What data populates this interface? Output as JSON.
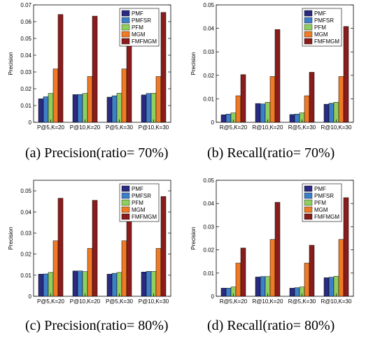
{
  "legend_colors": {
    "PMF": "#2a2a80",
    "PMFSR": "#3d7fc9",
    "PFM": "#8fcf5f",
    "MGM": "#f07a25",
    "FMFMGM": "#8a1c1c"
  },
  "chart_data": [
    {
      "type": "bar",
      "caption": "(a) Precision(ratio= 70%)",
      "ylabel": "Precision",
      "ylim": [
        0,
        0.07
      ],
      "yticks": [
        0,
        0.01,
        0.02,
        0.03,
        0.04,
        0.05,
        0.06,
        0.07
      ],
      "yticklabels": [
        "0",
        "0.01",
        "0.02",
        "0.03",
        "0.04",
        "0.05",
        "0.06",
        "0.07"
      ],
      "categories": [
        "P@5,K=20",
        "P@10,K=20",
        "P@5,K=30",
        "P@10,K=30"
      ],
      "legend_position": "top-right",
      "series": [
        {
          "name": "PMF",
          "values": [
            0.014,
            0.0165,
            0.015,
            0.0163
          ]
        },
        {
          "name": "PMFSR",
          "values": [
            0.0152,
            0.0166,
            0.0158,
            0.0172
          ]
        },
        {
          "name": "PFM",
          "values": [
            0.0172,
            0.0172,
            0.0173,
            0.0173
          ]
        },
        {
          "name": "MGM",
          "values": [
            0.0318,
            0.0273,
            0.0318,
            0.0273
          ]
        },
        {
          "name": "FMFMGM",
          "values": [
            0.0643,
            0.0633,
            0.0673,
            0.0655
          ]
        }
      ]
    },
    {
      "type": "bar",
      "caption": "(b) Recall(ratio= 70%)",
      "ylabel": "Precision",
      "ylim": [
        0,
        0.05
      ],
      "yticks": [
        0,
        0.01,
        0.02,
        0.03,
        0.04,
        0.05
      ],
      "yticklabels": [
        "0",
        "0.01",
        "0.02",
        "0.03",
        "0.04",
        "0.05"
      ],
      "categories": [
        "R@5,K=20",
        "R@10,K=20",
        "R@5,K=30",
        "R@10,K=30"
      ],
      "legend_position": "top-right",
      "series": [
        {
          "name": "PMF",
          "values": [
            0.0032,
            0.008,
            0.0033,
            0.0077
          ]
        },
        {
          "name": "PMFSR",
          "values": [
            0.0035,
            0.0078,
            0.0035,
            0.0081
          ]
        },
        {
          "name": "PFM",
          "values": [
            0.004,
            0.0085,
            0.004,
            0.0085
          ]
        },
        {
          "name": "MGM",
          "values": [
            0.0113,
            0.0195,
            0.0113,
            0.0195
          ]
        },
        {
          "name": "FMFMGM",
          "values": [
            0.0203,
            0.0395,
            0.0213,
            0.0408
          ]
        }
      ]
    },
    {
      "type": "bar",
      "caption": "(c) Precision(ratio= 80%)",
      "ylabel": "Precision",
      "ylim": [
        0,
        0.055
      ],
      "yticks": [
        0,
        0.01,
        0.02,
        0.03,
        0.04,
        0.05
      ],
      "yticklabels": [
        "0",
        "0.01",
        "0.02",
        "0.03",
        "0.04",
        "0.05"
      ],
      "categories": [
        "P@5,K=20",
        "P@10,K=20",
        "P@5,K=30",
        "P@10,K=30"
      ],
      "legend_position": "top-right",
      "series": [
        {
          "name": "PMF",
          "values": [
            0.0105,
            0.012,
            0.0105,
            0.0115
          ]
        },
        {
          "name": "PMFSR",
          "values": [
            0.0106,
            0.012,
            0.0109,
            0.0118
          ]
        },
        {
          "name": "PFM",
          "values": [
            0.0113,
            0.0117,
            0.0113,
            0.0118
          ]
        },
        {
          "name": "MGM",
          "values": [
            0.0263,
            0.0227,
            0.0263,
            0.0227
          ]
        },
        {
          "name": "FMFMGM",
          "values": [
            0.0465,
            0.0455,
            0.0488,
            0.0473
          ]
        }
      ]
    },
    {
      "type": "bar",
      "caption": "(d) Recall(ratio= 80%)",
      "ylabel": "Precision",
      "ylim": [
        0,
        0.05
      ],
      "yticks": [
        0,
        0.01,
        0.02,
        0.03,
        0.04,
        0.05
      ],
      "yticklabels": [
        "0",
        "0.01",
        "0.02",
        "0.03",
        "0.04",
        "0.05"
      ],
      "categories": [
        "R@5,K=20",
        "R@10,K=20",
        "R@5,K=30",
        "R@10,K=30"
      ],
      "legend_position": "top-right",
      "series": [
        {
          "name": "PMF",
          "values": [
            0.0035,
            0.0083,
            0.0035,
            0.008
          ]
        },
        {
          "name": "PMFSR",
          "values": [
            0.0035,
            0.0085,
            0.0037,
            0.0082
          ]
        },
        {
          "name": "PFM",
          "values": [
            0.004,
            0.0085,
            0.004,
            0.0086
          ]
        },
        {
          "name": "MGM",
          "values": [
            0.0143,
            0.0245,
            0.0143,
            0.0245
          ]
        },
        {
          "name": "FMFMGM",
          "values": [
            0.0208,
            0.0405,
            0.022,
            0.0425
          ]
        }
      ]
    }
  ]
}
